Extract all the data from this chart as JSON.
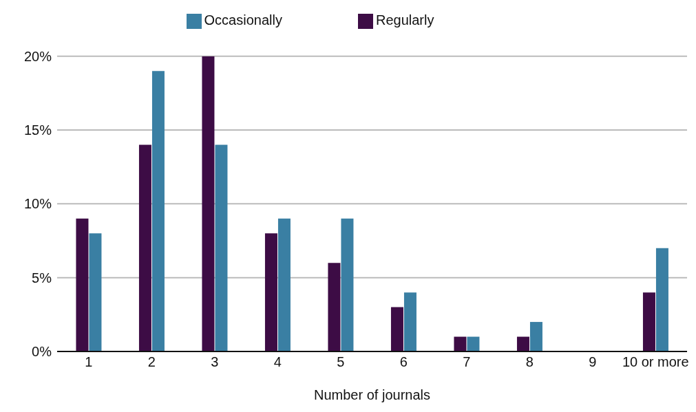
{
  "chart_data": {
    "type": "bar",
    "xlabel": "Number of journals",
    "categories": [
      "1",
      "2",
      "3",
      "4",
      "5",
      "6",
      "7",
      "8",
      "9",
      "10 or more"
    ],
    "series": [
      {
        "name": "Regularly",
        "color": "#3d0c45",
        "values": [
          9,
          14,
          20,
          8,
          6,
          3,
          1,
          1,
          0,
          4
        ]
      },
      {
        "name": "Occasionally",
        "color": "#3a7fa3",
        "values": [
          8,
          19,
          14,
          9,
          9,
          4,
          1,
          2,
          0,
          7
        ]
      }
    ],
    "ylim": [
      0,
      20
    ],
    "yticks": [
      {
        "value": 0,
        "label": "0%"
      },
      {
        "value": 5,
        "label": "5%"
      },
      {
        "value": 10,
        "label": "10%"
      },
      {
        "value": 15,
        "label": "15%"
      },
      {
        "value": 20,
        "label": "20%"
      }
    ],
    "grid": "y",
    "legend": "top"
  }
}
